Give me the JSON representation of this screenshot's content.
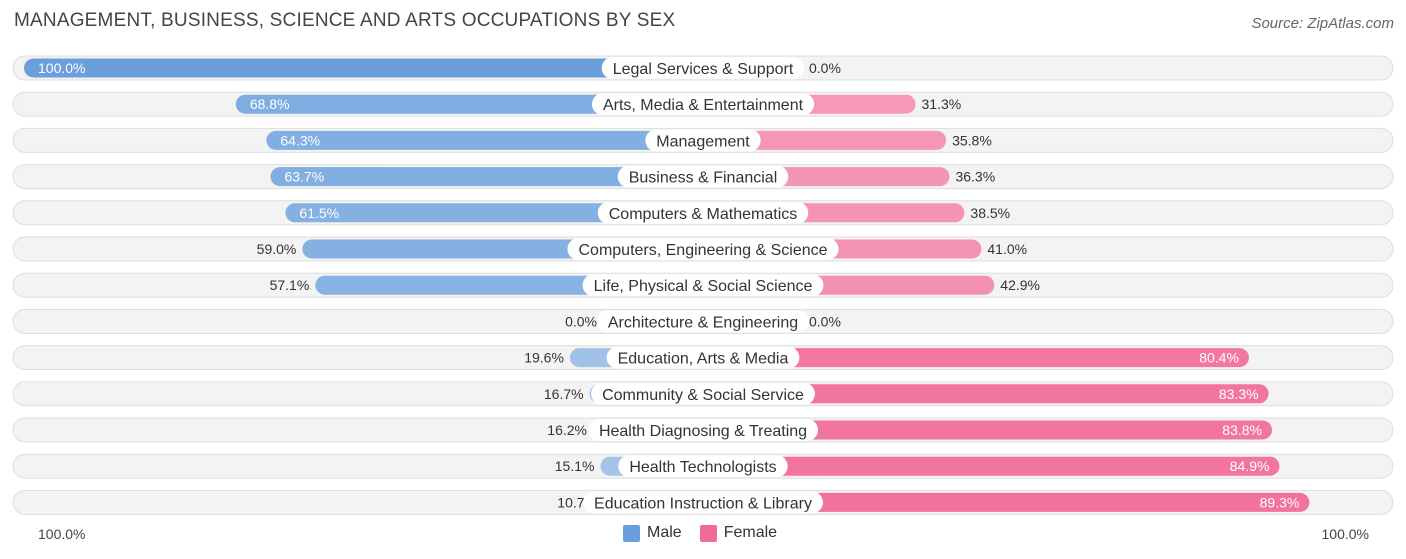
{
  "header": {
    "title": "MANAGEMENT, BUSINESS, SCIENCE AND ARTS OCCUPATIONS BY SEX",
    "source": "Source: ZipAtlas.com"
  },
  "axis": {
    "left_label": "100.0%",
    "right_label": "100.0%"
  },
  "legend": {
    "male_label": "Male",
    "female_label": "Female",
    "male_color": "#6a9fdc",
    "female_color": "#f06b96"
  },
  "chart_data": {
    "type": "bar",
    "orientation": "diverging-horizontal",
    "title": "MANAGEMENT, BUSINESS, SCIENCE AND ARTS OCCUPATIONS BY SEX",
    "xlim": [
      -100,
      100
    ],
    "legend_position": "bottom-center",
    "categories": [
      "Legal Services & Support",
      "Arts, Media & Entertainment",
      "Management",
      "Business & Financial",
      "Computers & Mathematics",
      "Computers, Engineering & Science",
      "Life, Physical & Social Science",
      "Architecture & Engineering",
      "Education, Arts & Media",
      "Community & Social Service",
      "Health Diagnosing & Treating",
      "Health Technologists",
      "Education Instruction & Library"
    ],
    "series": [
      {
        "name": "Male",
        "values": [
          100.0,
          68.8,
          64.3,
          63.7,
          61.5,
          59.0,
          57.1,
          0.0,
          19.6,
          16.7,
          16.2,
          15.1,
          10.7
        ],
        "labels": [
          "100.0%",
          "68.8%",
          "64.3%",
          "63.7%",
          "61.5%",
          "59.0%",
          "57.1%",
          "0.0%",
          "19.6%",
          "16.7%",
          "16.2%",
          "15.1%",
          "10.7%"
        ]
      },
      {
        "name": "Female",
        "values": [
          0.0,
          31.3,
          35.8,
          36.3,
          38.5,
          41.0,
          42.9,
          0.0,
          80.4,
          83.3,
          83.8,
          84.9,
          89.3
        ],
        "labels": [
          "0.0%",
          "31.3%",
          "35.8%",
          "36.3%",
          "38.5%",
          "41.0%",
          "42.9%",
          "0.0%",
          "80.4%",
          "83.3%",
          "83.8%",
          "84.9%",
          "89.3%"
        ]
      }
    ]
  }
}
